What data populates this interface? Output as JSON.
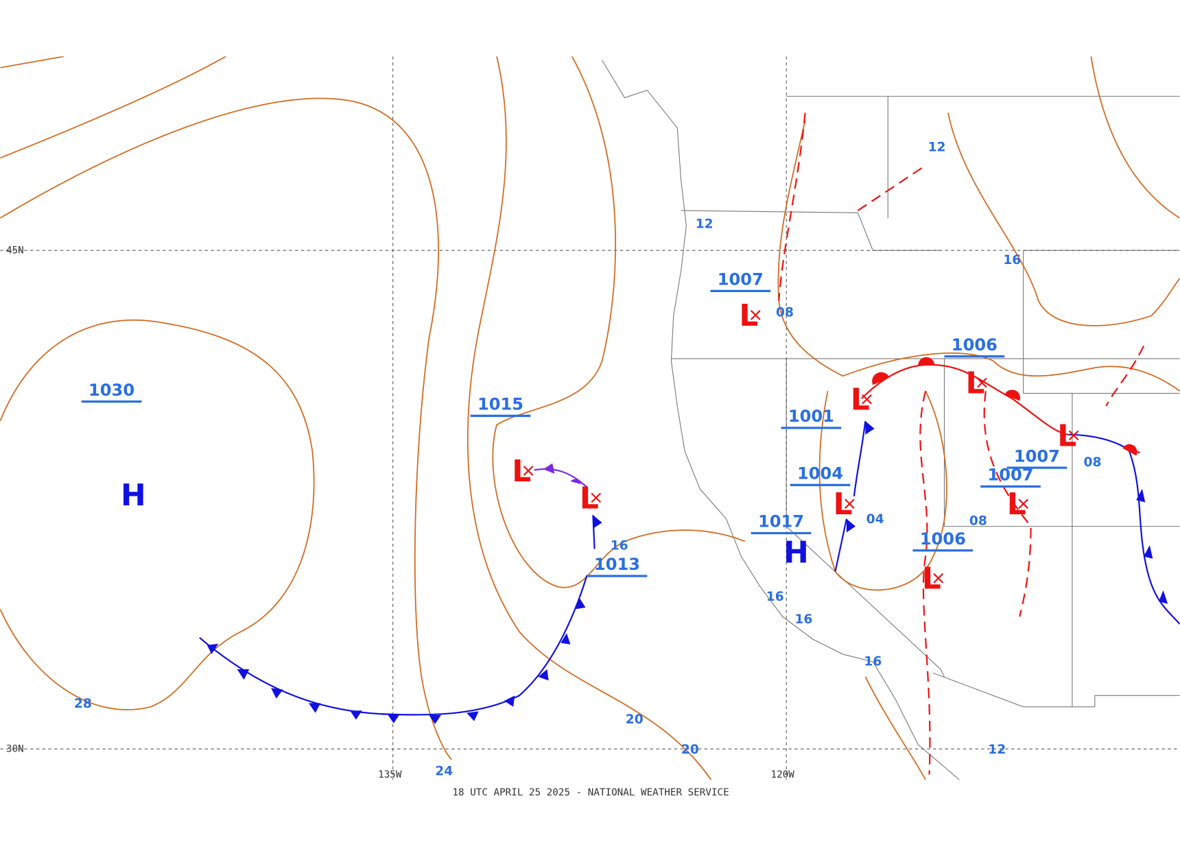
{
  "map": {
    "footer": "18 UTC APRIL 25 2025 - NATIONAL WEATHER SERVICE",
    "grid_labels": [
      "45N",
      "30N",
      "135W",
      "120W"
    ],
    "pressure_labels": [
      "1030",
      "1015",
      "1013",
      "1007",
      "1001",
      "1004",
      "1017",
      "1006",
      "1006",
      "1007",
      "1007"
    ],
    "highs": [
      "H",
      "H"
    ],
    "lows": [
      "L",
      "L",
      "L",
      "L",
      "L",
      "L",
      "L",
      "L",
      "L"
    ],
    "isobar_labels": [
      "28",
      "24",
      "20",
      "20",
      "16",
      "12",
      "08",
      "12",
      "16",
      "08",
      "04",
      "08",
      "16",
      "16",
      "16",
      "12"
    ]
  }
}
